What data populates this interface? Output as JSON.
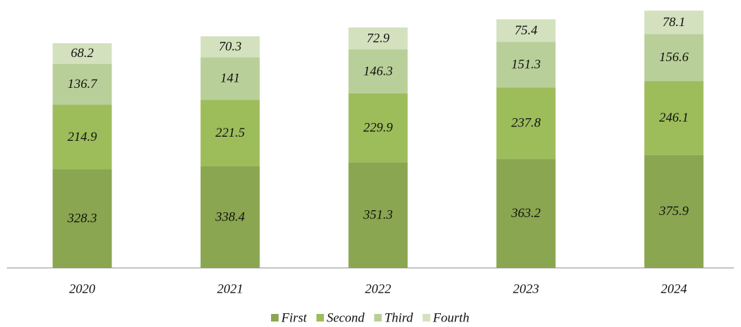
{
  "chart_data": {
    "type": "stacked_bar",
    "categories": [
      "2020",
      "2021",
      "2022",
      "2023",
      "2024"
    ],
    "series": [
      {
        "name": "First",
        "color": "#8aa650",
        "values": [
          328.3,
          338.4,
          351.3,
          363.2,
          375.9
        ]
      },
      {
        "name": "Second",
        "color": "#9dbd5b",
        "values": [
          214.9,
          221.5,
          229.9,
          237.8,
          246.1
        ]
      },
      {
        "name": "Third",
        "color": "#b9cf99",
        "values": [
          136.7,
          141,
          146.3,
          151.3,
          156.6
        ]
      },
      {
        "name": "Fourth",
        "color": "#d3e1be",
        "values": [
          68.2,
          70.3,
          72.9,
          75.4,
          78.1
        ]
      }
    ],
    "ylim": [
      0,
      860
    ],
    "legend": "bottom"
  }
}
